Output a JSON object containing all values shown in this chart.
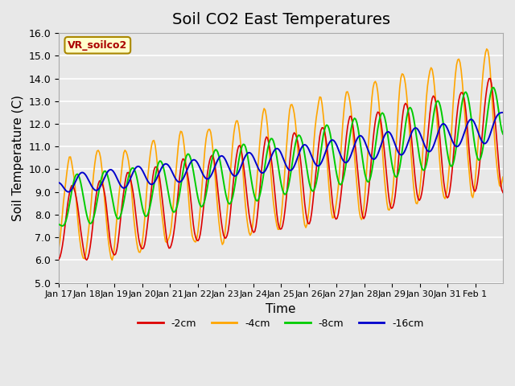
{
  "title": "Soil CO2 East Temperatures",
  "xlabel": "Time",
  "ylabel": "Soil Temperature (C)",
  "ylim": [
    5.0,
    16.0
  ],
  "yticks": [
    5.0,
    6.0,
    7.0,
    8.0,
    9.0,
    10.0,
    11.0,
    12.0,
    13.0,
    14.0,
    15.0,
    16.0
  ],
  "xtick_labels": [
    "Jan 17",
    "Jan 18",
    "Jan 19",
    "Jan 20",
    "Jan 21",
    "Jan 22",
    "Jan 23",
    "Jan 24",
    "Jan 25",
    "Jan 26",
    "Jan 27",
    "Jan 28",
    "Jan 29",
    "Jan 30",
    "Jan 31",
    "Feb 1"
  ],
  "colors": {
    "-2cm": "#dd0000",
    "-4cm": "#ffa500",
    "-8cm": "#00cc00",
    "-16cm": "#0000cc"
  },
  "legend_label": "VR_soilco2",
  "legend_box_color": "#ffffcc",
  "legend_box_edge": "#aa8800",
  "plot_bg_color": "#e8e8e8",
  "grid_color": "#ffffff",
  "title_fontsize": 14,
  "label_fontsize": 11
}
